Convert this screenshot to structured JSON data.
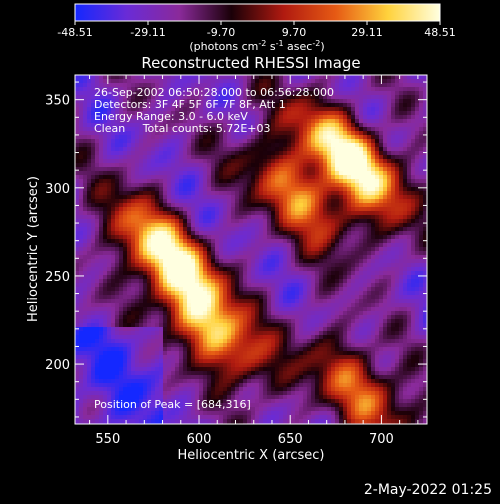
{
  "chart_data": {
    "type": "heatmap",
    "title": "Reconstructed RHESSI Image",
    "xlabel": "Heliocentric X (arcsec)",
    "ylabel": "Heliocentric Y (arcsec)",
    "xlim": [
      532,
      725
    ],
    "ylim": [
      166,
      364
    ],
    "x_ticks": [
      550,
      600,
      650,
      700
    ],
    "y_ticks": [
      200,
      250,
      300,
      350
    ],
    "colorbar": {
      "min": -48.51,
      "max": 48.51,
      "ticks": [
        "-48.51",
        "-29.11",
        "-9.70",
        "9.70",
        "29.11",
        "48.51"
      ],
      "unit_base": "(photons cm",
      "unit_exp1": "-2",
      "unit_mid": " s",
      "unit_exp2": "-1",
      "unit_mid2": " asec",
      "unit_exp3": "-2",
      "unit_end": ")",
      "colors": [
        "#1428ff",
        "#6a2bd6",
        "#8a2a9a",
        "#1a0008",
        "#b01a10",
        "#e65a14",
        "#ffd23c",
        "#ffffe0"
      ]
    },
    "annotations": [
      "26-Sep-2002 06:50:28.000 to 06:56:28.000",
      "Detectors: 3F 4F 5F 6F 7F 8F, Att 1",
      "Energy Range: 3.0 - 6.0 keV",
      "Clean     Total counts: 5.72E+03"
    ],
    "peak_label": "Position of Peak = [684,316]",
    "peak": [
      684,
      316
    ],
    "sources": [
      {
        "x": 582,
        "y": 262,
        "intensity": 42
      },
      {
        "x": 608,
        "y": 218,
        "intensity": 30
      },
      {
        "x": 684,
        "y": 316,
        "intensity": 48.51
      },
      {
        "x": 655,
        "y": 295,
        "intensity": 24
      },
      {
        "x": 690,
        "y": 185,
        "intensity": 18
      }
    ]
  },
  "footer": {
    "date": "2-May-2022 01:25"
  }
}
